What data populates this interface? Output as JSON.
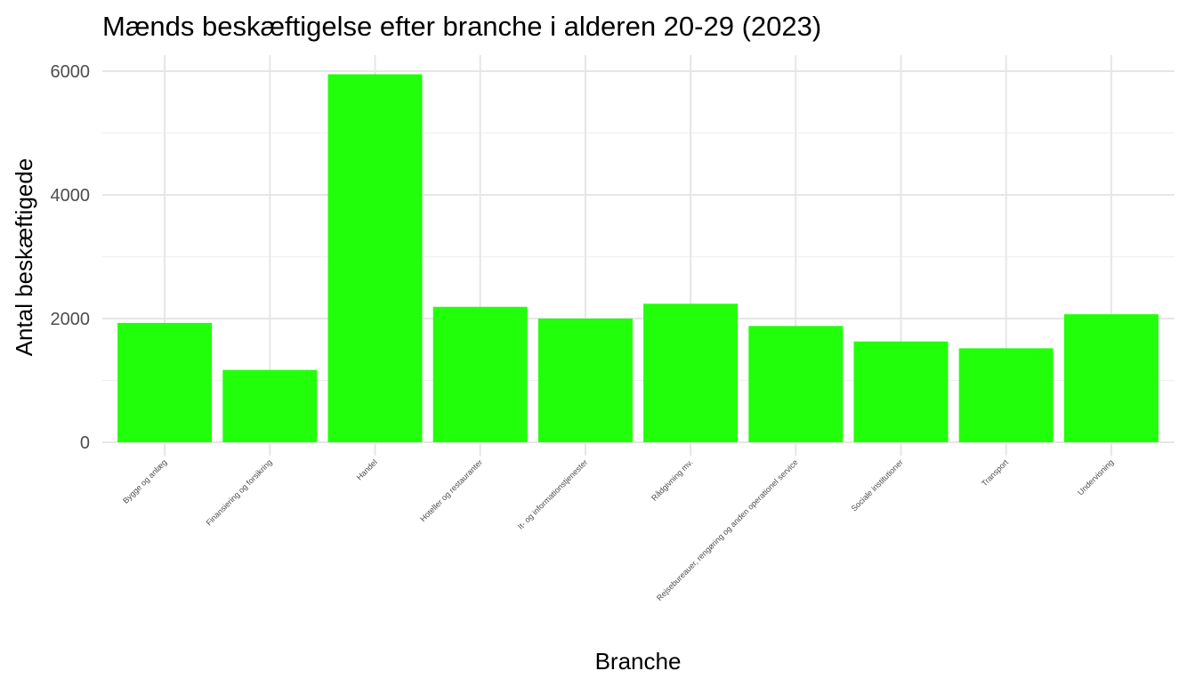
{
  "colors": {
    "bar": "#22ff0a",
    "grid": "#e6e6e6",
    "tick_text": "#4d4d4d"
  },
  "chart_data": {
    "type": "bar",
    "title": "Mænds beskæftigelse efter branche i alderen 20-29 (2023)",
    "xlabel": "Branche",
    "ylabel": "Antal beskæftigede",
    "categories": [
      "Bygge og anlæg",
      "Finansiering og forsikring",
      "Handel",
      "Hoteller og restauranter",
      "It- og informationstjenester",
      "Rådgivning mv.",
      "Rejsebureauer, rengøring og anden operationel service",
      "Sociale institutioner",
      "Transport",
      "Undervisning"
    ],
    "values": [
      1930,
      1170,
      5950,
      2190,
      2000,
      2240,
      1880,
      1630,
      1520,
      2070
    ],
    "ylim": [
      0,
      6000
    ],
    "yticks": [
      0,
      2000,
      4000,
      6000
    ],
    "grid": true,
    "legend": "none"
  }
}
